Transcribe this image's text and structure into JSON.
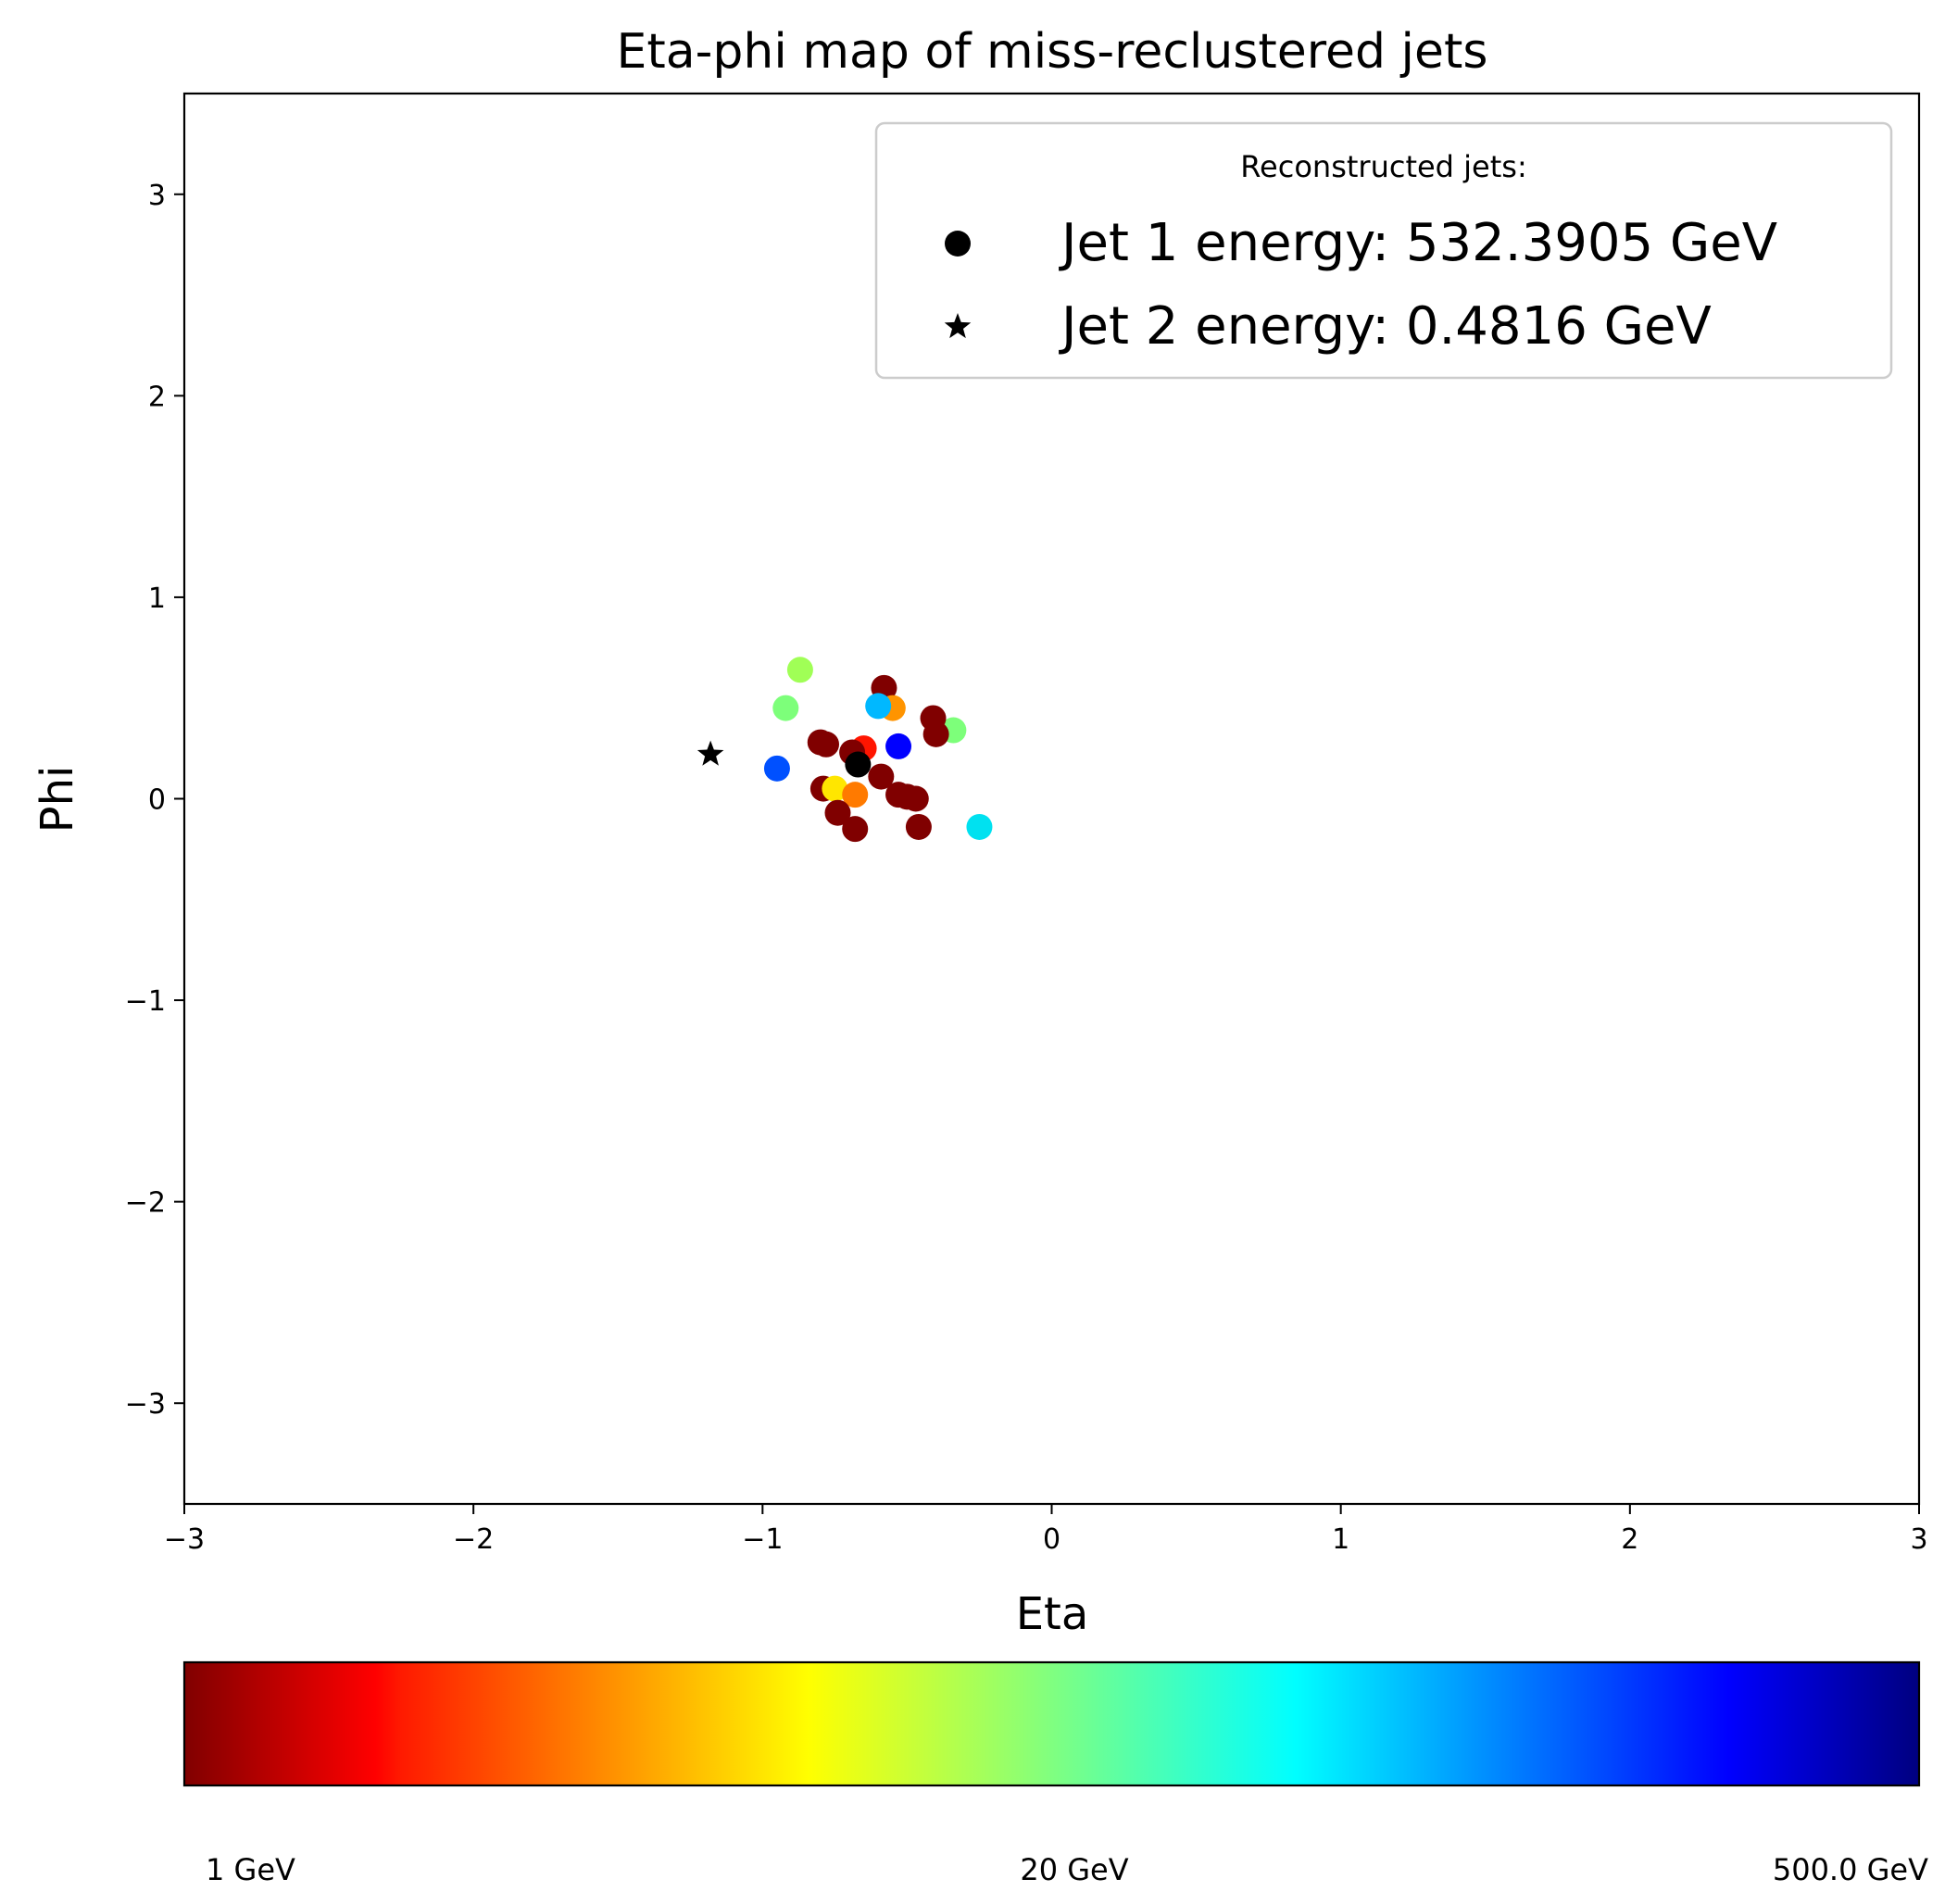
{
  "chart_data": {
    "type": "scatter",
    "title": "Eta-phi map of miss-reclustered jets",
    "xlabel": "Eta",
    "ylabel": "Phi",
    "xlim": [
      -3,
      3
    ],
    "ylim": [
      -3.5,
      3.5
    ],
    "x_ticks": [
      -3,
      -2,
      -1,
      0,
      1,
      2,
      3
    ],
    "y_ticks": [
      -3,
      -2,
      -1,
      0,
      1,
      2,
      3
    ],
    "x_tick_labels": [
      "−3",
      "−2",
      "−1",
      "0",
      "1",
      "2",
      "3"
    ],
    "y_tick_labels": [
      "−3",
      "−2",
      "−1",
      "0",
      "1",
      "2",
      "3"
    ],
    "grid": false,
    "legend": {
      "title": "Reconstructed jets:",
      "placement": "top-right",
      "entries": [
        {
          "marker": "circle",
          "label": "Jet 1 energy: 532.3905 GeV"
        },
        {
          "marker": "star",
          "label": "Jet 2 energy: 0.4816 GeV"
        }
      ]
    },
    "colorbar": {
      "colormap": "jet",
      "scale": "log",
      "range": [
        1,
        500
      ],
      "tick_labels": [
        "1 GeV",
        "20 GeV",
        "500.0 GeV"
      ]
    },
    "jets": [
      {
        "name": "Jet 1",
        "marker": "circle",
        "eta": -0.67,
        "phi": 0.17,
        "color": "#000000"
      },
      {
        "name": "Jet 2",
        "marker": "star",
        "eta": -1.18,
        "phi": 0.22,
        "color": "#000000"
      }
    ],
    "constituents": [
      {
        "eta": -0.87,
        "phi": 0.64,
        "color": "#a0ff56"
      },
      {
        "eta": -0.92,
        "phi": 0.45,
        "color": "#7dff7a"
      },
      {
        "eta": -0.58,
        "phi": 0.55,
        "color": "#800000"
      },
      {
        "eta": -0.55,
        "phi": 0.45,
        "color": "#ff9400"
      },
      {
        "eta": -0.6,
        "phi": 0.46,
        "color": "#00b8ff"
      },
      {
        "eta": -0.34,
        "phi": 0.34,
        "color": "#7dff7a"
      },
      {
        "eta": -0.41,
        "phi": 0.4,
        "color": "#800000"
      },
      {
        "eta": -0.4,
        "phi": 0.32,
        "color": "#800000"
      },
      {
        "eta": -0.8,
        "phi": 0.28,
        "color": "#800000"
      },
      {
        "eta": -0.78,
        "phi": 0.27,
        "color": "#800000"
      },
      {
        "eta": -0.65,
        "phi": 0.25,
        "color": "#ff1500"
      },
      {
        "eta": -0.69,
        "phi": 0.23,
        "color": "#800000"
      },
      {
        "eta": -0.53,
        "phi": 0.26,
        "color": "#0000ff"
      },
      {
        "eta": -0.95,
        "phi": 0.15,
        "color": "#0050ff"
      },
      {
        "eta": -0.59,
        "phi": 0.11,
        "color": "#800000"
      },
      {
        "eta": -0.79,
        "phi": 0.05,
        "color": "#800000"
      },
      {
        "eta": -0.75,
        "phi": 0.05,
        "color": "#ffe600"
      },
      {
        "eta": -0.68,
        "phi": 0.02,
        "color": "#ff7a00"
      },
      {
        "eta": -0.53,
        "phi": 0.02,
        "color": "#800000"
      },
      {
        "eta": -0.47,
        "phi": 0.0,
        "color": "#800000"
      },
      {
        "eta": -0.5,
        "phi": 0.01,
        "color": "#800000"
      },
      {
        "eta": -0.74,
        "phi": -0.07,
        "color": "#800000"
      },
      {
        "eta": -0.68,
        "phi": -0.15,
        "color": "#800000"
      },
      {
        "eta": -0.46,
        "phi": -0.14,
        "color": "#800000"
      },
      {
        "eta": -0.25,
        "phi": -0.14,
        "color": "#00e1f0"
      }
    ]
  }
}
